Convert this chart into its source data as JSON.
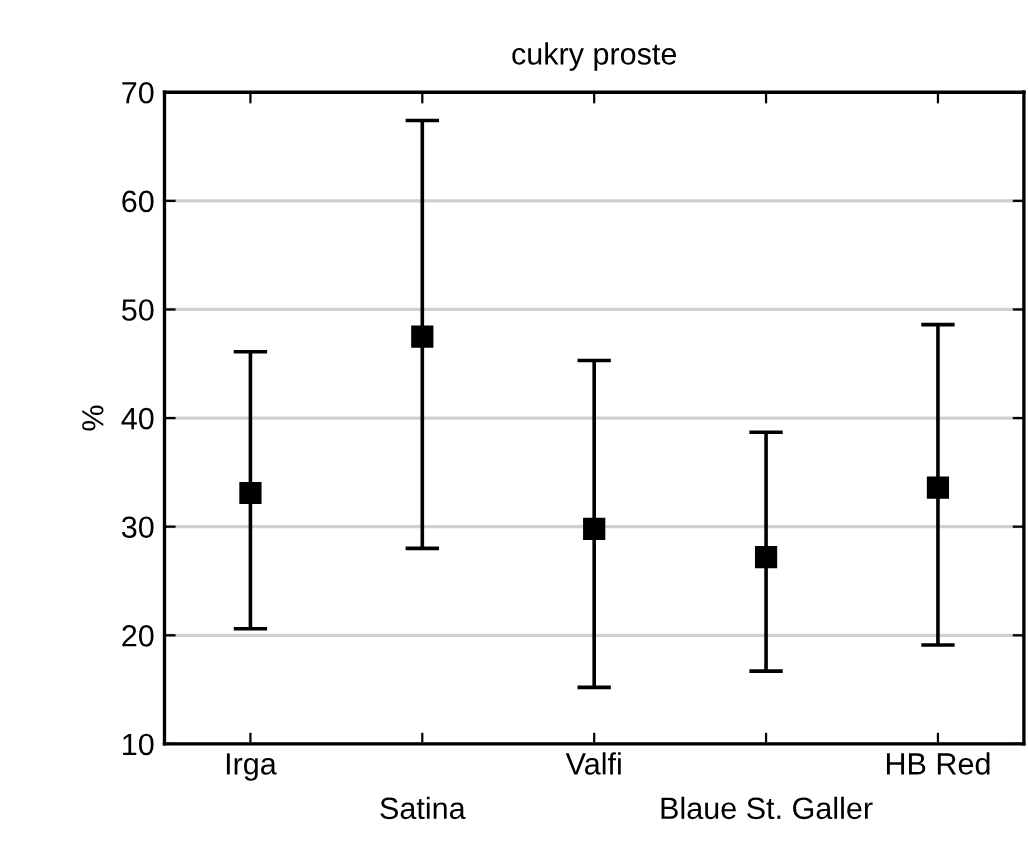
{
  "chart_data": {
    "type": "scatter",
    "title": "cukry proste",
    "ylabel": "%",
    "categories": [
      "Irga",
      "Satina",
      "Valfi",
      "Blaue St. Galler",
      "HB Red"
    ],
    "values": [
      33.1,
      47.5,
      29.8,
      27.2,
      33.6
    ],
    "errors": [
      [
        20.6,
        46.1
      ],
      [
        28.0,
        67.4
      ],
      [
        15.2,
        45.3
      ],
      [
        16.7,
        38.7
      ],
      [
        19.1,
        48.6
      ]
    ],
    "color": "#000000",
    "marker": "square",
    "ylim": [
      10,
      70
    ],
    "yticks": [
      10,
      20,
      30,
      40,
      50,
      60,
      70
    ],
    "grid": "y",
    "legend": false
  }
}
